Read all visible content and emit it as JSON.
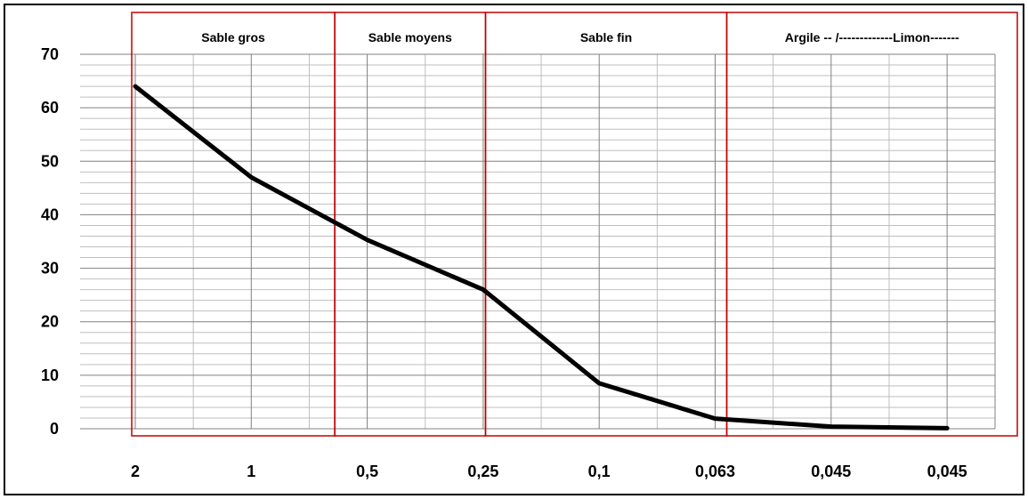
{
  "colors": {
    "line": "#000000",
    "zone_border": "#c00000",
    "grid_major": "#808080",
    "grid_minor": "#bfbfbf"
  },
  "chart_data": {
    "type": "line",
    "title": "",
    "xlabel": "",
    "ylabel": "",
    "categories": [
      "2",
      "1",
      "0,5",
      "0,25",
      "0,1",
      "0,063",
      "0,045",
      "0,045"
    ],
    "series": [
      {
        "values": [
          64,
          47,
          35.3,
          26,
          8.5,
          1.9,
          0.4,
          0.1
        ]
      }
    ],
    "ylim": [
      0,
      70
    ],
    "y_ticks": [
      0,
      10,
      20,
      30,
      40,
      50,
      60,
      70
    ],
    "grid": true,
    "legend": "none",
    "zones": [
      {
        "label": "Sable gros",
        "from_category": 0,
        "to_category": 1.72
      },
      {
        "label": "Sable moyens",
        "from_category": 1.72,
        "to_category": 3.02
      },
      {
        "label": "Sable fin",
        "from_category": 3.02,
        "to_category": 5.1
      },
      {
        "label": "Argile -- /-------------Limon-------",
        "from_category": 5.1,
        "to_category": 7.7
      }
    ]
  }
}
